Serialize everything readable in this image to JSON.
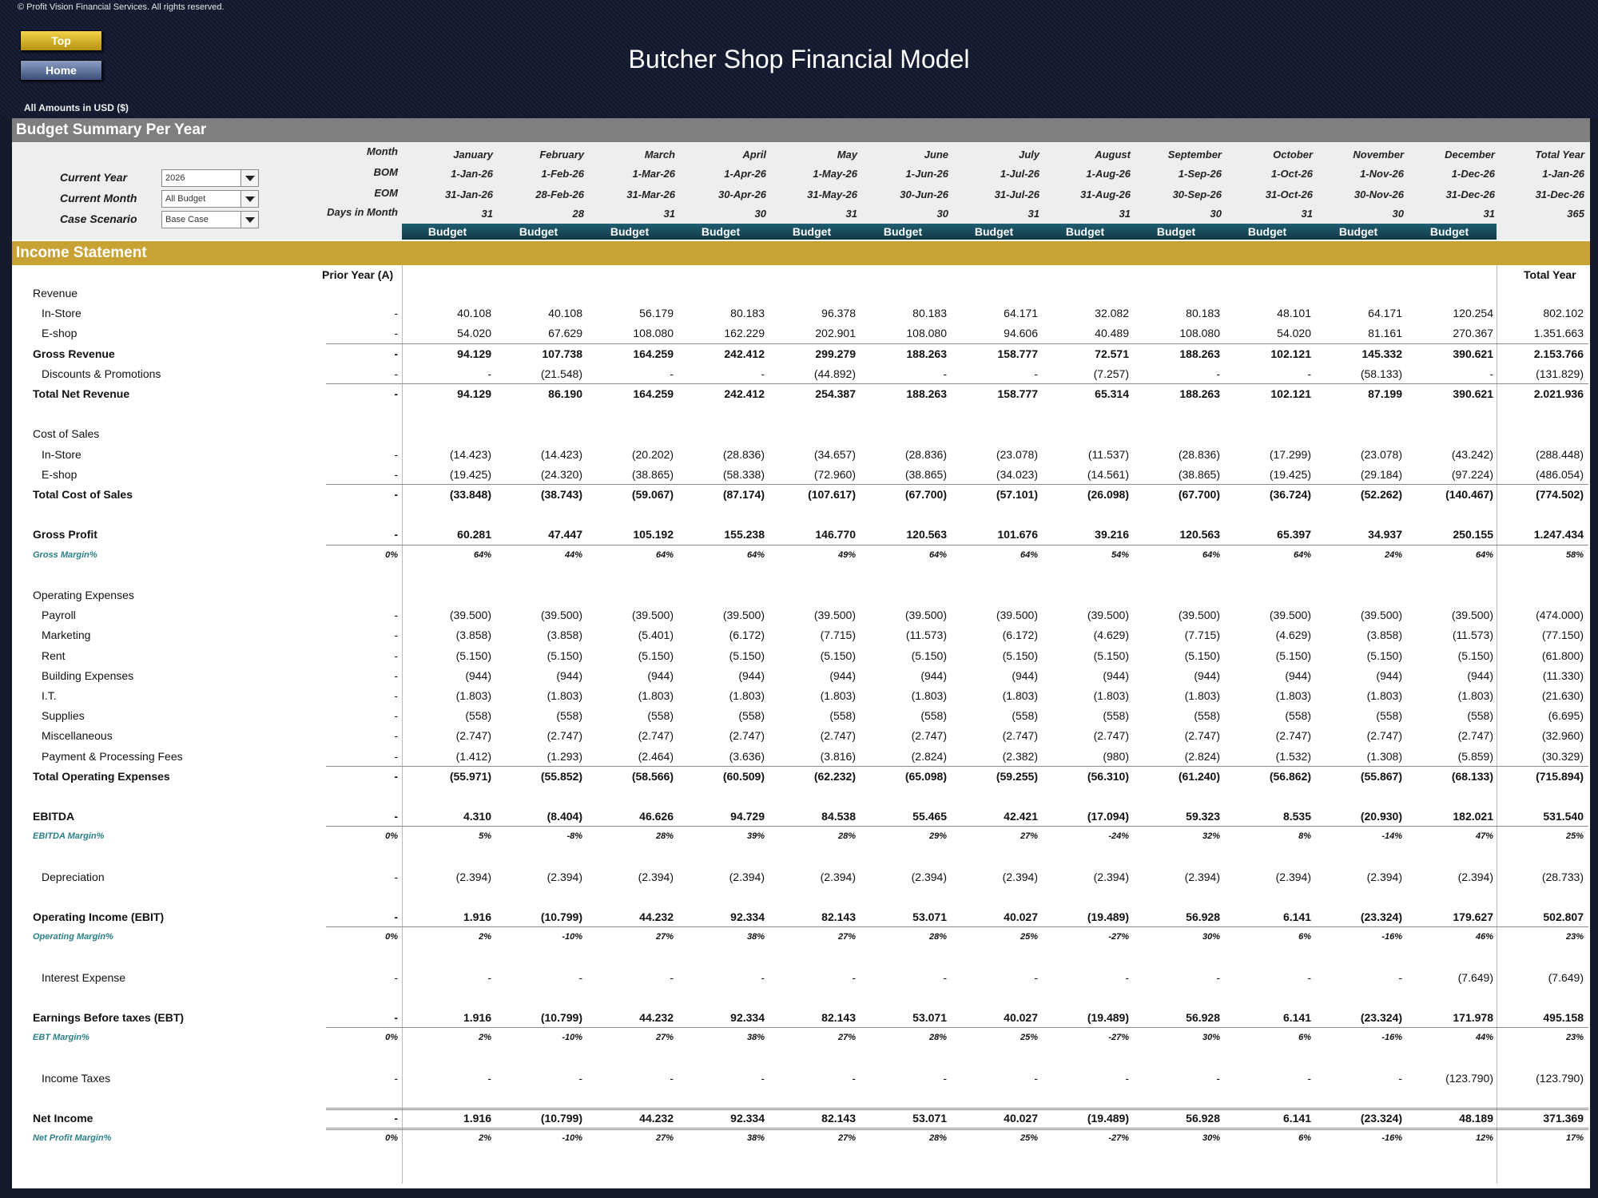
{
  "copyright": "© Profit Vision Financial Services. All rights reserved.",
  "nav": {
    "top_label": "Top",
    "home_label": "Home"
  },
  "title": "Butcher Shop Financial Model",
  "amounts_note": "All Amounts in  USD ($)",
  "summary_bar": "Budget Summary Per Year",
  "income_bar": "Income Statement",
  "controls": {
    "current_year": {
      "label": "Current Year",
      "value": "2026"
    },
    "current_month": {
      "label": "Current Month",
      "value": "All Budget"
    },
    "case_scenario": {
      "label": "Case Scenario",
      "value": "Base Case"
    }
  },
  "header_labels": {
    "month": "Month",
    "bom": "BOM",
    "eom": "EOM",
    "days": "Days in Month"
  },
  "months": [
    {
      "name": "January",
      "bom": "1-Jan-26",
      "eom": "31-Jan-26",
      "days": "31",
      "type": "Budget"
    },
    {
      "name": "February",
      "bom": "1-Feb-26",
      "eom": "28-Feb-26",
      "days": "28",
      "type": "Budget"
    },
    {
      "name": "March",
      "bom": "1-Mar-26",
      "eom": "31-Mar-26",
      "days": "31",
      "type": "Budget"
    },
    {
      "name": "April",
      "bom": "1-Apr-26",
      "eom": "30-Apr-26",
      "days": "30",
      "type": "Budget"
    },
    {
      "name": "May",
      "bom": "1-May-26",
      "eom": "31-May-26",
      "days": "31",
      "type": "Budget"
    },
    {
      "name": "June",
      "bom": "1-Jun-26",
      "eom": "30-Jun-26",
      "days": "30",
      "type": "Budget"
    },
    {
      "name": "July",
      "bom": "1-Jul-26",
      "eom": "31-Jul-26",
      "days": "31",
      "type": "Budget"
    },
    {
      "name": "August",
      "bom": "1-Aug-26",
      "eom": "31-Aug-26",
      "days": "31",
      "type": "Budget"
    },
    {
      "name": "September",
      "bom": "1-Sep-26",
      "eom": "30-Sep-26",
      "days": "30",
      "type": "Budget"
    },
    {
      "name": "October",
      "bom": "1-Oct-26",
      "eom": "31-Oct-26",
      "days": "31",
      "type": "Budget"
    },
    {
      "name": "November",
      "bom": "1-Nov-26",
      "eom": "30-Nov-26",
      "days": "30",
      "type": "Budget"
    },
    {
      "name": "December",
      "bom": "1-Dec-26",
      "eom": "31-Dec-26",
      "days": "31",
      "type": "Budget"
    }
  ],
  "total_header": {
    "name": "Total Year",
    "bom": "1-Jan-26",
    "eom": "31-Dec-26",
    "days": "365"
  },
  "columns": {
    "prior_year": "Prior Year (A)",
    "total_year": "Total Year"
  },
  "rows": [
    {
      "label": "Revenue",
      "style": "head"
    },
    {
      "label": "In-Store",
      "style": "sub",
      "py": "-",
      "vals": [
        "40.108",
        "40.108",
        "56.179",
        "80.183",
        "96.378",
        "80.183",
        "64.171",
        "32.082",
        "80.183",
        "48.101",
        "64.171",
        "120.254"
      ],
      "total": "802.102"
    },
    {
      "label": "E-shop",
      "style": "sub",
      "py": "-",
      "vals": [
        "54.020",
        "67.629",
        "108.080",
        "162.229",
        "202.901",
        "108.080",
        "94.606",
        "40.489",
        "108.080",
        "54.020",
        "81.161",
        "270.367"
      ],
      "total": "1.351.663"
    },
    {
      "label": "Gross Revenue",
      "style": "bold",
      "line": "single",
      "py": "-",
      "vals": [
        "94.129",
        "107.738",
        "164.259",
        "242.412",
        "299.279",
        "188.263",
        "158.777",
        "72.571",
        "188.263",
        "102.121",
        "145.332",
        "390.621"
      ],
      "total": "2.153.766"
    },
    {
      "label": "Discounts & Promotions",
      "style": "sub",
      "py": "-",
      "vals": [
        "-",
        "(21.548)",
        "-",
        "-",
        "(44.892)",
        "-",
        "-",
        "(7.257)",
        "-",
        "-",
        "(58.133)",
        "-"
      ],
      "total": "(131.829)"
    },
    {
      "label": "Total Net Revenue",
      "style": "bold",
      "line": "single",
      "py": "-",
      "vals": [
        "94.129",
        "86.190",
        "164.259",
        "242.412",
        "254.387",
        "188.263",
        "158.777",
        "65.314",
        "188.263",
        "102.121",
        "87.199",
        "390.621"
      ],
      "total": "2.021.936"
    },
    {
      "label": "",
      "style": "blank"
    },
    {
      "label": "Cost of Sales",
      "style": "head"
    },
    {
      "label": "In-Store",
      "style": "sub",
      "py": "-",
      "vals": [
        "(14.423)",
        "(14.423)",
        "(20.202)",
        "(28.836)",
        "(34.657)",
        "(28.836)",
        "(23.078)",
        "(11.537)",
        "(28.836)",
        "(17.299)",
        "(23.078)",
        "(43.242)"
      ],
      "total": "(288.448)"
    },
    {
      "label": "E-shop",
      "style": "sub",
      "py": "-",
      "vals": [
        "(19.425)",
        "(24.320)",
        "(38.865)",
        "(58.338)",
        "(72.960)",
        "(38.865)",
        "(34.023)",
        "(14.561)",
        "(38.865)",
        "(19.425)",
        "(29.184)",
        "(97.224)"
      ],
      "total": "(486.054)"
    },
    {
      "label": "Total Cost of Sales",
      "style": "bold",
      "line": "single",
      "py": "-",
      "vals": [
        "(33.848)",
        "(38.743)",
        "(59.067)",
        "(87.174)",
        "(107.617)",
        "(67.700)",
        "(57.101)",
        "(26.098)",
        "(67.700)",
        "(36.724)",
        "(52.262)",
        "(140.467)"
      ],
      "total": "(774.502)"
    },
    {
      "label": "",
      "style": "blank"
    },
    {
      "label": "Gross Profit",
      "style": "bold",
      "py": "-",
      "vals": [
        "60.281",
        "47.447",
        "105.192",
        "155.238",
        "146.770",
        "120.563",
        "101.676",
        "39.216",
        "120.563",
        "65.397",
        "34.937",
        "250.155"
      ],
      "total": "1.247.434"
    },
    {
      "label": "Gross Margin%",
      "style": "margin",
      "line": "single",
      "py": "0%",
      "vals": [
        "64%",
        "44%",
        "64%",
        "64%",
        "49%",
        "64%",
        "64%",
        "54%",
        "64%",
        "64%",
        "24%",
        "64%"
      ],
      "total": "58%"
    },
    {
      "label": "",
      "style": "blank"
    },
    {
      "label": "Operating Expenses",
      "style": "head"
    },
    {
      "label": "Payroll",
      "style": "sub",
      "py": "-",
      "vals": [
        "(39.500)",
        "(39.500)",
        "(39.500)",
        "(39.500)",
        "(39.500)",
        "(39.500)",
        "(39.500)",
        "(39.500)",
        "(39.500)",
        "(39.500)",
        "(39.500)",
        "(39.500)"
      ],
      "total": "(474.000)"
    },
    {
      "label": "Marketing",
      "style": "sub",
      "py": "-",
      "vals": [
        "(3.858)",
        "(3.858)",
        "(5.401)",
        "(6.172)",
        "(7.715)",
        "(11.573)",
        "(6.172)",
        "(4.629)",
        "(7.715)",
        "(4.629)",
        "(3.858)",
        "(11.573)"
      ],
      "total": "(77.150)"
    },
    {
      "label": "Rent",
      "style": "sub",
      "py": "-",
      "vals": [
        "(5.150)",
        "(5.150)",
        "(5.150)",
        "(5.150)",
        "(5.150)",
        "(5.150)",
        "(5.150)",
        "(5.150)",
        "(5.150)",
        "(5.150)",
        "(5.150)",
        "(5.150)"
      ],
      "total": "(61.800)"
    },
    {
      "label": "Building Expenses",
      "style": "sub",
      "py": "-",
      "vals": [
        "(944)",
        "(944)",
        "(944)",
        "(944)",
        "(944)",
        "(944)",
        "(944)",
        "(944)",
        "(944)",
        "(944)",
        "(944)",
        "(944)"
      ],
      "total": "(11.330)"
    },
    {
      "label": "I.T.",
      "style": "sub",
      "py": "-",
      "vals": [
        "(1.803)",
        "(1.803)",
        "(1.803)",
        "(1.803)",
        "(1.803)",
        "(1.803)",
        "(1.803)",
        "(1.803)",
        "(1.803)",
        "(1.803)",
        "(1.803)",
        "(1.803)"
      ],
      "total": "(21.630)"
    },
    {
      "label": "Supplies",
      "style": "sub",
      "py": "-",
      "vals": [
        "(558)",
        "(558)",
        "(558)",
        "(558)",
        "(558)",
        "(558)",
        "(558)",
        "(558)",
        "(558)",
        "(558)",
        "(558)",
        "(558)"
      ],
      "total": "(6.695)"
    },
    {
      "label": "Miscellaneous",
      "style": "sub",
      "py": "-",
      "vals": [
        "(2.747)",
        "(2.747)",
        "(2.747)",
        "(2.747)",
        "(2.747)",
        "(2.747)",
        "(2.747)",
        "(2.747)",
        "(2.747)",
        "(2.747)",
        "(2.747)",
        "(2.747)"
      ],
      "total": "(32.960)"
    },
    {
      "label": "Payment & Processing Fees",
      "style": "sub",
      "py": "-",
      "vals": [
        "(1.412)",
        "(1.293)",
        "(2.464)",
        "(3.636)",
        "(3.816)",
        "(2.824)",
        "(2.382)",
        "(980)",
        "(2.824)",
        "(1.532)",
        "(1.308)",
        "(5.859)"
      ],
      "total": "(30.329)"
    },
    {
      "label": "Total Operating Expenses",
      "style": "bold",
      "line": "single",
      "py": "-",
      "vals": [
        "(55.971)",
        "(55.852)",
        "(58.566)",
        "(60.509)",
        "(62.232)",
        "(65.098)",
        "(59.255)",
        "(56.310)",
        "(61.240)",
        "(56.862)",
        "(55.867)",
        "(68.133)"
      ],
      "total": "(715.894)"
    },
    {
      "label": "",
      "style": "blank"
    },
    {
      "label": "EBITDA",
      "style": "bold",
      "py": "-",
      "vals": [
        "4.310",
        "(8.404)",
        "46.626",
        "94.729",
        "84.538",
        "55.465",
        "42.421",
        "(17.094)",
        "59.323",
        "8.535",
        "(20.930)",
        "182.021"
      ],
      "total": "531.540"
    },
    {
      "label": "EBITDA Margin%",
      "style": "margin",
      "line": "single",
      "py": "0%",
      "vals": [
        "5%",
        "-8%",
        "28%",
        "39%",
        "28%",
        "29%",
        "27%",
        "-24%",
        "32%",
        "8%",
        "-14%",
        "47%"
      ],
      "total": "25%"
    },
    {
      "label": "",
      "style": "blank"
    },
    {
      "label": "Depreciation",
      "style": "sub",
      "py": "-",
      "vals": [
        "(2.394)",
        "(2.394)",
        "(2.394)",
        "(2.394)",
        "(2.394)",
        "(2.394)",
        "(2.394)",
        "(2.394)",
        "(2.394)",
        "(2.394)",
        "(2.394)",
        "(2.394)"
      ],
      "total": "(28.733)"
    },
    {
      "label": "",
      "style": "blank"
    },
    {
      "label": "Operating Income (EBIT)",
      "style": "bold",
      "py": "-",
      "vals": [
        "1.916",
        "(10.799)",
        "44.232",
        "92.334",
        "82.143",
        "53.071",
        "40.027",
        "(19.489)",
        "56.928",
        "6.141",
        "(23.324)",
        "179.627"
      ],
      "total": "502.807"
    },
    {
      "label": "Operating Margin%",
      "style": "margin",
      "line": "single",
      "py": "0%",
      "vals": [
        "2%",
        "-10%",
        "27%",
        "38%",
        "27%",
        "28%",
        "25%",
        "-27%",
        "30%",
        "6%",
        "-16%",
        "46%"
      ],
      "total": "23%"
    },
    {
      "label": "",
      "style": "blank"
    },
    {
      "label": "Interest Expense",
      "style": "sub",
      "py": "-",
      "vals": [
        "-",
        "-",
        "-",
        "-",
        "-",
        "-",
        "-",
        "-",
        "-",
        "-",
        "-",
        "(7.649)"
      ],
      "total": "(7.649)"
    },
    {
      "label": "",
      "style": "blank"
    },
    {
      "label": "Earnings Before taxes (EBT)",
      "style": "bold",
      "py": "-",
      "vals": [
        "1.916",
        "(10.799)",
        "44.232",
        "92.334",
        "82.143",
        "53.071",
        "40.027",
        "(19.489)",
        "56.928",
        "6.141",
        "(23.324)",
        "171.978"
      ],
      "total": "495.158"
    },
    {
      "label": "EBT Margin%",
      "style": "margin",
      "line": "single",
      "py": "0%",
      "vals": [
        "2%",
        "-10%",
        "27%",
        "38%",
        "27%",
        "28%",
        "25%",
        "-27%",
        "30%",
        "6%",
        "-16%",
        "44%"
      ],
      "total": "23%"
    },
    {
      "label": "",
      "style": "blank"
    },
    {
      "label": "Income Taxes",
      "style": "sub",
      "py": "-",
      "vals": [
        "-",
        "-",
        "-",
        "-",
        "-",
        "-",
        "-",
        "-",
        "-",
        "-",
        "-",
        "(123.790)"
      ],
      "total": "(123.790)"
    },
    {
      "label": "",
      "style": "blank"
    },
    {
      "label": "Net Income",
      "style": "bold",
      "line": "double",
      "py": "-",
      "vals": [
        "1.916",
        "(10.799)",
        "44.232",
        "92.334",
        "82.143",
        "53.071",
        "40.027",
        "(19.489)",
        "56.928",
        "6.141",
        "(23.324)",
        "48.189"
      ],
      "total": "371.369"
    },
    {
      "label": "Net Profit Margin%",
      "style": "margin",
      "line": "double",
      "py": "0%",
      "vals": [
        "2%",
        "-10%",
        "27%",
        "38%",
        "27%",
        "28%",
        "25%",
        "-27%",
        "30%",
        "6%",
        "-16%",
        "12%"
      ],
      "total": "17%"
    }
  ]
}
